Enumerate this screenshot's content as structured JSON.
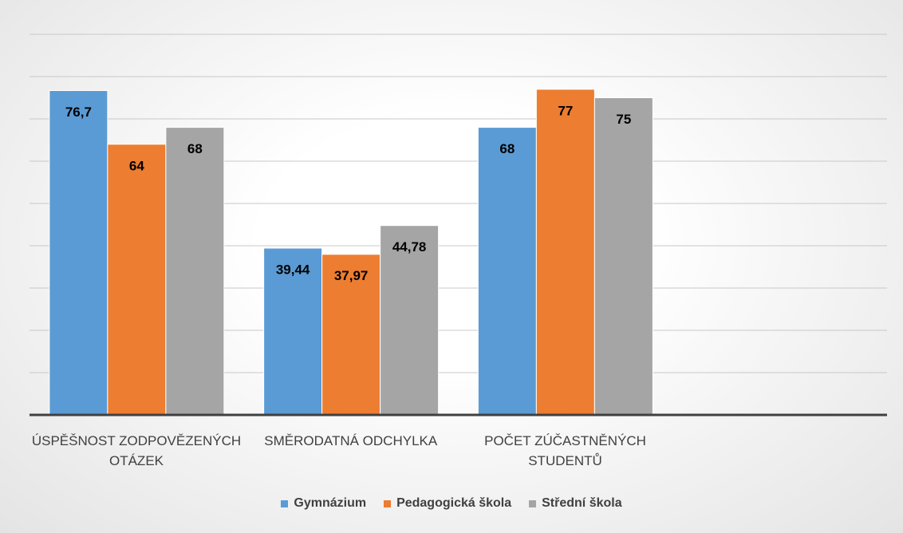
{
  "chart_data": {
    "type": "bar",
    "categories": [
      "ÚSPĚŠNOST ZODPOVĚZENÝCH OTÁZEK",
      "SMĚRODATNÁ ODCHYLKA",
      "POČET ZÚČASTNĚNÝCH STUDENTŮ",
      null
    ],
    "series": [
      {
        "name": "Gymnázium",
        "color": "#5b9bd5",
        "values": [
          76.7,
          39.44,
          68,
          null
        ],
        "value_labels": [
          "76,7",
          "39,44",
          "68",
          null
        ]
      },
      {
        "name": "Pedagogická škola",
        "color": "#ed7d31",
        "values": [
          64,
          37.97,
          77,
          null
        ],
        "value_labels": [
          "64",
          "37,97",
          "77",
          null
        ]
      },
      {
        "name": "Střední škola",
        "color": "#a5a5a5",
        "values": [
          68,
          44.78,
          75,
          null
        ],
        "value_labels": [
          "68",
          "44,78",
          "75",
          null
        ]
      }
    ],
    "ylim": [
      0,
      90
    ],
    "yticks": [
      0,
      10,
      20,
      30,
      40,
      50,
      60,
      70,
      80,
      90
    ],
    "grid": true,
    "legend": "bottom"
  }
}
